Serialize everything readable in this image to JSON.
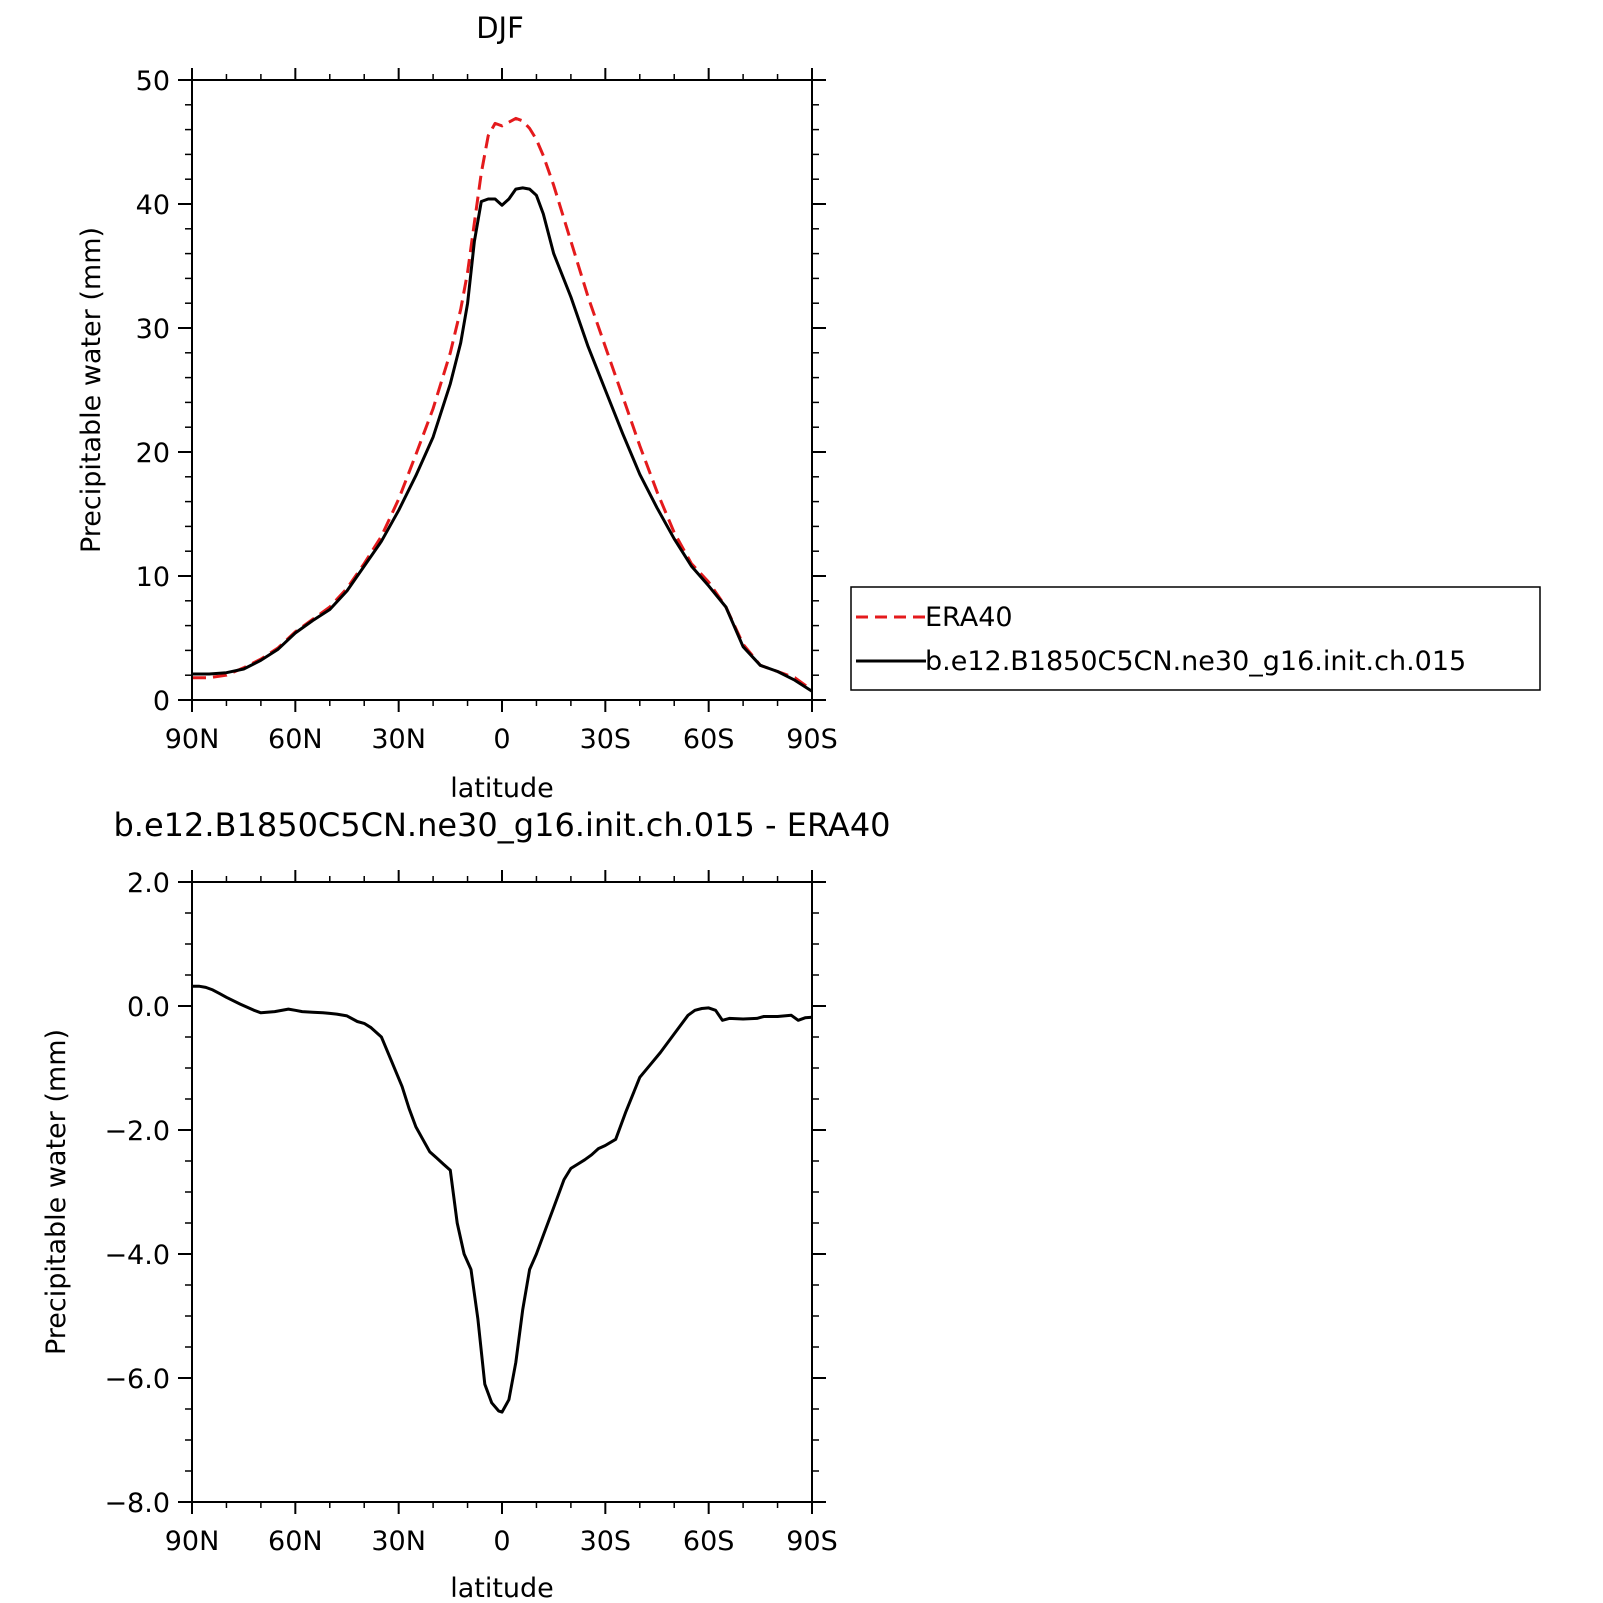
{
  "chart_data": [
    {
      "type": "line",
      "title": "DJF",
      "xlabel": "latitude",
      "ylabel": "Precipitable water (mm)",
      "xlim": [
        90,
        -90
      ],
      "ylim": [
        0,
        50
      ],
      "x_ticks": [
        {
          "value": 90,
          "label": "90N"
        },
        {
          "value": 60,
          "label": "60N"
        },
        {
          "value": 30,
          "label": "30N"
        },
        {
          "value": 0,
          "label": "0"
        },
        {
          "value": -30,
          "label": "30S"
        },
        {
          "value": -60,
          "label": "60S"
        },
        {
          "value": -90,
          "label": "90S"
        }
      ],
      "y_ticks": [
        {
          "value": 0,
          "label": "0"
        },
        {
          "value": 10,
          "label": "10"
        },
        {
          "value": 20,
          "label": "20"
        },
        {
          "value": 30,
          "label": "30"
        },
        {
          "value": 40,
          "label": "40"
        },
        {
          "value": 50,
          "label": "50"
        }
      ],
      "grid": false,
      "legend": {
        "placement": "right",
        "entries": [
          "ERA40",
          "b.e12.B1850C5CN.ne30_g16.init.ch.015"
        ]
      },
      "series": [
        {
          "name": "ERA40",
          "color": "#e41a1c",
          "style": "dashed",
          "x": [
            90,
            85,
            80,
            75,
            70,
            65,
            60,
            55,
            50,
            45,
            40,
            35,
            30,
            25,
            20,
            15,
            12,
            10,
            8,
            6,
            4,
            2,
            0,
            -2,
            -4,
            -6,
            -8,
            -10,
            -12,
            -15,
            -20,
            -25,
            -30,
            -35,
            -40,
            -45,
            -50,
            -55,
            -60,
            -65,
            -70,
            -75,
            -80,
            -85,
            -90
          ],
          "y": [
            1.8,
            1.8,
            2.0,
            2.6,
            3.3,
            4.2,
            5.5,
            6.5,
            7.5,
            9.0,
            11.0,
            13.2,
            16.2,
            19.8,
            23.5,
            28.0,
            31.5,
            34.5,
            38.5,
            42.5,
            45.5,
            46.5,
            46.3,
            46.6,
            46.9,
            46.7,
            46.1,
            45.2,
            43.9,
            41.5,
            37.0,
            32.5,
            28.5,
            24.5,
            20.5,
            16.8,
            13.5,
            11.0,
            9.5,
            7.5,
            4.5,
            2.8,
            2.3,
            1.8,
            0.8
          ]
        },
        {
          "name": "b.e12.B1850C5CN.ne30_g16.init.ch.015",
          "color": "#000000",
          "style": "solid",
          "x": [
            90,
            85,
            80,
            75,
            70,
            65,
            60,
            55,
            50,
            45,
            40,
            35,
            30,
            25,
            20,
            15,
            12,
            10,
            8,
            6,
            4,
            2,
            0,
            -2,
            -4,
            -6,
            -8,
            -10,
            -12,
            -15,
            -20,
            -25,
            -30,
            -35,
            -40,
            -45,
            -50,
            -55,
            -60,
            -65,
            -70,
            -75,
            -80,
            -85,
            -90
          ],
          "y": [
            2.1,
            2.1,
            2.2,
            2.5,
            3.2,
            4.1,
            5.4,
            6.4,
            7.3,
            8.8,
            10.8,
            12.8,
            15.3,
            18.1,
            21.2,
            25.5,
            28.8,
            32.0,
            37.0,
            40.2,
            40.4,
            40.4,
            39.9,
            40.4,
            41.2,
            41.3,
            41.2,
            40.7,
            39.2,
            36.0,
            32.5,
            28.5,
            25.0,
            21.5,
            18.2,
            15.5,
            13.0,
            10.8,
            9.2,
            7.5,
            4.3,
            2.8,
            2.3,
            1.6,
            0.7
          ]
        }
      ]
    },
    {
      "type": "line",
      "title": "b.e12.B1850C5CN.ne30_g16.init.ch.015 - ERA40",
      "xlabel": "latitude",
      "ylabel": "Precipitable water (mm)",
      "xlim": [
        90,
        -90
      ],
      "ylim": [
        -8.0,
        2.0
      ],
      "x_ticks": [
        {
          "value": 90,
          "label": "90N"
        },
        {
          "value": 60,
          "label": "60N"
        },
        {
          "value": 30,
          "label": "30N"
        },
        {
          "value": 0,
          "label": "0"
        },
        {
          "value": -30,
          "label": "30S"
        },
        {
          "value": -60,
          "label": "60S"
        },
        {
          "value": -90,
          "label": "90S"
        }
      ],
      "y_ticks": [
        {
          "value": 2.0,
          "label": "2.0"
        },
        {
          "value": 0.0,
          "label": "0.0"
        },
        {
          "value": -2.0,
          "label": "−2.0"
        },
        {
          "value": -4.0,
          "label": "−4.0"
        },
        {
          "value": -6.0,
          "label": "−6.0"
        },
        {
          "value": -8.0,
          "label": "−8.0"
        }
      ],
      "grid": false,
      "series": [
        {
          "color": "#000000",
          "style": "solid",
          "x": [
            90,
            88,
            86,
            84,
            82,
            80,
            76,
            72,
            70,
            66,
            62,
            60,
            58,
            55,
            52,
            50,
            48,
            45,
            42,
            40,
            38,
            35,
            32,
            29,
            27,
            25,
            23,
            21,
            19,
            17,
            15,
            13,
            11,
            9,
            7,
            5,
            3,
            1,
            0,
            -2,
            -4,
            -6,
            -8,
            -10,
            -12,
            -15,
            -18,
            -20,
            -22,
            -24,
            -26,
            -28,
            -30,
            -33,
            -36,
            -40,
            -43,
            -46,
            -50,
            -54,
            -56,
            -58,
            -60,
            -62,
            -64,
            -66,
            -70,
            -74,
            -76,
            -80,
            -84,
            -86,
            -88,
            -90
          ],
          "y": [
            0.32,
            0.32,
            0.3,
            0.26,
            0.2,
            0.14,
            0.03,
            -0.07,
            -0.11,
            -0.09,
            -0.05,
            -0.07,
            -0.09,
            -0.1,
            -0.11,
            -0.12,
            -0.13,
            -0.16,
            -0.25,
            -0.28,
            -0.35,
            -0.5,
            -0.9,
            -1.3,
            -1.65,
            -1.95,
            -2.15,
            -2.35,
            -2.45,
            -2.55,
            -2.65,
            -3.5,
            -4.0,
            -4.25,
            -5.05,
            -6.1,
            -6.4,
            -6.53,
            -6.55,
            -6.35,
            -5.75,
            -4.9,
            -4.25,
            -4.0,
            -3.7,
            -3.25,
            -2.8,
            -2.62,
            -2.55,
            -2.48,
            -2.4,
            -2.3,
            -2.25,
            -2.15,
            -1.7,
            -1.15,
            -0.95,
            -0.75,
            -0.45,
            -0.15,
            -0.07,
            -0.04,
            -0.03,
            -0.07,
            -0.23,
            -0.2,
            -0.21,
            -0.2,
            -0.17,
            -0.17,
            -0.15,
            -0.23,
            -0.19,
            -0.18
          ]
        }
      ]
    }
  ]
}
